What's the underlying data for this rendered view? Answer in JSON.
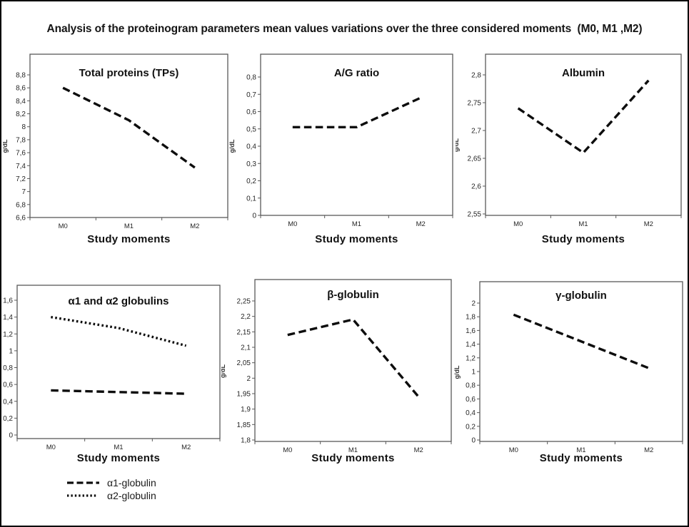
{
  "figure": {
    "title": "Analysis of the proteinogram parameters mean values variations over the three considered moments  (M0, M1 ,M2)"
  },
  "colors": {
    "line": "#0d0d0d",
    "box_border": "#595959",
    "tick_text": "#262626",
    "title_text": "#111111",
    "background": "#ffffff",
    "frame_border": "#000000"
  },
  "legend": {
    "items": [
      {
        "label": "α1-globulin",
        "line_style": "dashed"
      },
      {
        "label": "α2-globulin",
        "line_style": "dotted"
      }
    ]
  },
  "chart_data": [
    {
      "type": "line",
      "title": "Total proteins (TPs)",
      "xlabel": "Study moments",
      "ylabel": "g/dL",
      "categories": [
        "M0",
        "M1",
        "M2"
      ],
      "series": [
        {
          "name": "Total proteins (TPs)",
          "line_style": "dashed",
          "values": [
            8.6,
            8.1,
            7.37
          ]
        }
      ],
      "ylim": [
        6.6,
        8.8
      ],
      "ytick_step": 0.2,
      "grid": false,
      "legend_position": "none"
    },
    {
      "type": "line",
      "title": "A/G ratio",
      "xlabel": "Study moments",
      "ylabel": "g/dL",
      "categories": [
        "M0",
        "M1",
        "M2"
      ],
      "series": [
        {
          "name": "A/G ratio",
          "line_style": "dashed",
          "values": [
            0.51,
            0.51,
            0.68
          ]
        }
      ],
      "ylim": [
        0,
        0.8
      ],
      "ytick_step": 0.1,
      "grid": false,
      "legend_position": "none"
    },
    {
      "type": "line",
      "title": "Albumin",
      "xlabel": "Study moments",
      "ylabel": "g/dL",
      "categories": [
        "M0",
        "M1",
        "M2"
      ],
      "series": [
        {
          "name": "Albumin",
          "line_style": "dashed",
          "values": [
            2.74,
            2.66,
            2.79
          ]
        }
      ],
      "ylim": [
        2.55,
        2.8
      ],
      "ytick_step": 0.05,
      "grid": false,
      "legend_position": "none"
    },
    {
      "type": "line",
      "title": "α1  and α2 globulins",
      "xlabel": "Study moments",
      "ylabel": "g/dL",
      "categories": [
        "M0",
        "M1",
        "M2"
      ],
      "series": [
        {
          "name": "α1-globulin",
          "line_style": "dashed",
          "values": [
            0.53,
            0.51,
            0.49
          ]
        },
        {
          "name": "α2-globulin",
          "line_style": "dotted",
          "values": [
            1.4,
            1.27,
            1.06
          ]
        }
      ],
      "ylim": [
        0,
        1.6
      ],
      "ytick_step": 0.2,
      "grid": false,
      "legend_position": "bottom-left"
    },
    {
      "type": "line",
      "title": "β-globulin",
      "xlabel": "Study moments",
      "ylabel": "g/dL",
      "categories": [
        "M0",
        "M1",
        "M2"
      ],
      "series": [
        {
          "name": "β-globulin",
          "line_style": "dashed",
          "values": [
            2.14,
            2.19,
            1.94
          ]
        }
      ],
      "ylim": [
        1.8,
        2.25
      ],
      "ytick_step": 0.05,
      "grid": false,
      "legend_position": "none"
    },
    {
      "type": "line",
      "title": "γ-globulin",
      "xlabel": "Study moments",
      "ylabel": "g/dL",
      "categories": [
        "M0",
        "M1",
        "M2"
      ],
      "series": [
        {
          "name": "γ-globulin",
          "line_style": "dashed",
          "values": [
            1.83,
            1.44,
            1.05
          ]
        }
      ],
      "ylim": [
        0,
        2
      ],
      "ytick_step": 0.2,
      "grid": false,
      "legend_position": "none"
    }
  ]
}
